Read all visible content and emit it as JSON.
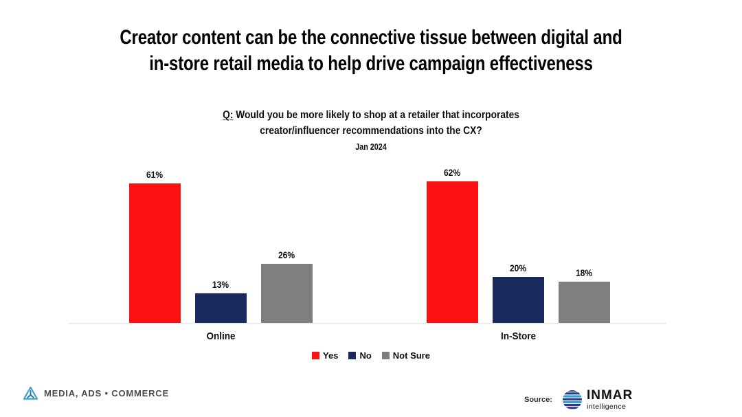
{
  "title": {
    "line1": "Creator content can be the connective tissue between digital and",
    "line2": "in-store retail media to help drive campaign effectiveness"
  },
  "question": {
    "prefix": "Q:",
    "line1": " Would you be more likely to shop at a retailer that incorporates",
    "line2": "creator/influencer recommendations into the CX?",
    "date": "Jan 2024"
  },
  "chart_data": {
    "type": "bar",
    "title": "Q: Would you be more likely to shop at a retailer that incorporates creator/influencer recommendations into the CX?",
    "subtitle": "Jan 2024",
    "categories": [
      "Online",
      "In-Store"
    ],
    "series": [
      {
        "name": "Yes",
        "color": "#fd1212",
        "values": [
          61,
          62
        ]
      },
      {
        "name": "No",
        "color": "#1a2a5e",
        "values": [
          13,
          20
        ]
      },
      {
        "name": "Not Sure",
        "color": "#7f7f7f",
        "values": [
          26,
          18
        ]
      }
    ],
    "value_suffix": "%",
    "data_labels": true,
    "xlabel": "",
    "ylabel": "",
    "ylim": [
      0,
      70
    ],
    "grid": false,
    "y_axis_visible": false,
    "legend_position": "bottom"
  },
  "footer": {
    "brand": "MEDIA, ADS • COMMERCE",
    "source_label": "Source:",
    "source_name": "INMAR",
    "source_sub": "intelligence"
  },
  "colors": {
    "yes": "#fd1212",
    "no": "#1a2a5e",
    "not_sure": "#7f7f7f",
    "axis_line": "#ececec",
    "inmar_navy": "#2b3a8f",
    "inmar_teal": "#2fa8c0",
    "brand_text": "#4a4a4a",
    "brand_logo_light_blue": "#3e9fd0",
    "brand_logo_dark_blue": "#1b74b8"
  }
}
